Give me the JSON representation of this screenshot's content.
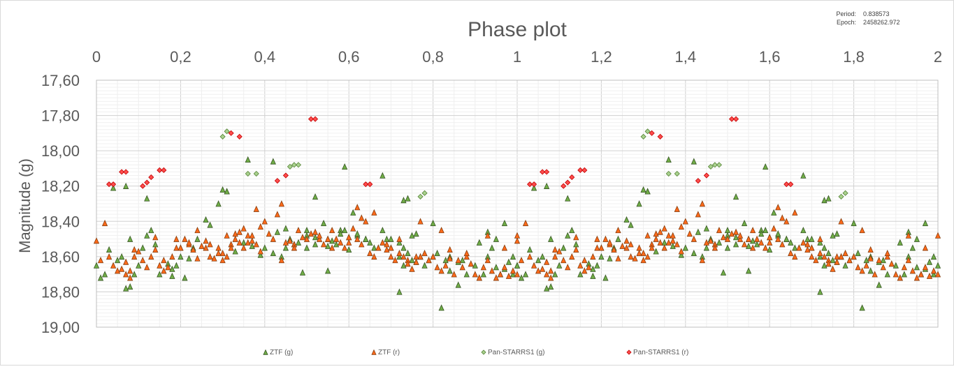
{
  "chart_data": {
    "type": "scatter",
    "title": "Phase plot",
    "xlabel": "",
    "ylabel": "Magnitude (g)",
    "xlim": [
      0,
      2
    ],
    "ylim": [
      17.6,
      19.0
    ],
    "y_inverted": true,
    "x_axis_position": "top",
    "x_ticks": [
      "0",
      "0,2",
      "0,4",
      "0,6",
      "0,8",
      "1",
      "1,2",
      "1,4",
      "1,6",
      "1,8",
      "2"
    ],
    "y_ticks": [
      "17,60",
      "17,80",
      "18,00",
      "18,20",
      "18,40",
      "18,60",
      "18,80",
      "19,00"
    ],
    "grid": true,
    "legend_position": "bottom",
    "info": {
      "period_label": "Period:",
      "period_value": "0.838573",
      "epoch_label": "Epoch:",
      "epoch_value": "2458262.972"
    },
    "series": [
      {
        "name": "ZTF (g)",
        "marker": "triangle",
        "color": "#70AD47",
        "edge": "#375623",
        "points": [
          [
            0.0,
            18.65
          ],
          [
            0.01,
            18.72
          ],
          [
            0.02,
            18.7
          ],
          [
            0.03,
            18.56
          ],
          [
            0.05,
            18.62
          ],
          [
            0.06,
            18.6
          ],
          [
            0.07,
            18.78
          ],
          [
            0.08,
            18.77
          ],
          [
            0.08,
            18.5
          ],
          [
            0.09,
            18.7
          ],
          [
            0.1,
            18.65
          ],
          [
            0.11,
            18.55
          ],
          [
            0.12,
            18.48
          ],
          [
            0.13,
            18.45
          ],
          [
            0.14,
            18.53
          ],
          [
            0.15,
            18.7
          ],
          [
            0.17,
            18.64
          ],
          [
            0.18,
            18.67
          ],
          [
            0.19,
            18.65
          ],
          [
            0.2,
            18.6
          ],
          [
            0.21,
            18.72
          ],
          [
            0.23,
            18.55
          ],
          [
            0.24,
            18.5
          ],
          [
            0.26,
            18.39
          ],
          [
            0.27,
            18.42
          ],
          [
            0.29,
            18.3
          ],
          [
            0.3,
            18.22
          ],
          [
            0.31,
            18.23
          ],
          [
            0.04,
            18.21
          ],
          [
            0.07,
            18.2
          ],
          [
            0.12,
            18.27
          ],
          [
            0.18,
            18.71
          ],
          [
            0.22,
            18.61
          ],
          [
            0.33,
            18.57
          ],
          [
            0.35,
            18.52
          ],
          [
            0.37,
            18.54
          ],
          [
            0.39,
            18.59
          ],
          [
            0.4,
            18.55
          ],
          [
            0.42,
            18.58
          ],
          [
            0.44,
            18.6
          ],
          [
            0.45,
            18.55
          ],
          [
            0.47,
            18.53
          ],
          [
            0.49,
            18.69
          ],
          [
            0.5,
            18.55
          ],
          [
            0.52,
            18.53
          ],
          [
            0.54,
            18.41
          ],
          [
            0.56,
            18.51
          ],
          [
            0.58,
            18.45
          ],
          [
            0.6,
            18.56
          ],
          [
            0.62,
            18.48
          ],
          [
            0.64,
            18.5
          ],
          [
            0.31,
            18.23
          ],
          [
            0.36,
            18.05
          ],
          [
            0.42,
            18.06
          ],
          [
            0.45,
            18.44
          ],
          [
            0.5,
            18.45
          ],
          [
            0.55,
            18.54
          ],
          [
            0.59,
            18.45
          ],
          [
            0.43,
            18.46
          ],
          [
            0.46,
            18.5
          ],
          [
            0.48,
            18.52
          ],
          [
            0.5,
            18.48
          ],
          [
            0.52,
            18.49
          ],
          [
            0.55,
            18.5
          ],
          [
            0.57,
            18.53
          ],
          [
            0.58,
            18.47
          ],
          [
            0.6,
            18.49
          ],
          [
            0.62,
            18.47
          ],
          [
            0.64,
            18.5
          ],
          [
            0.66,
            18.55
          ],
          [
            0.68,
            18.45
          ],
          [
            0.7,
            18.5
          ],
          [
            0.72,
            18.52
          ],
          [
            0.73,
            18.55
          ],
          [
            0.75,
            18.48
          ],
          [
            0.76,
            18.47
          ],
          [
            0.52,
            18.26
          ],
          [
            0.55,
            18.68
          ],
          [
            0.59,
            18.09
          ],
          [
            0.61,
            18.35
          ],
          [
            0.68,
            18.14
          ],
          [
            0.73,
            18.28
          ],
          [
            0.74,
            18.27
          ],
          [
            0.72,
            18.8
          ],
          [
            0.8,
            18.41
          ],
          [
            0.82,
            18.89
          ],
          [
            0.84,
            18.6
          ],
          [
            0.86,
            18.63
          ],
          [
            0.65,
            18.52
          ],
          [
            0.67,
            18.55
          ],
          [
            0.69,
            18.5
          ],
          [
            0.7,
            18.55
          ],
          [
            0.72,
            18.6
          ],
          [
            0.73,
            18.65
          ],
          [
            0.74,
            18.58
          ],
          [
            0.75,
            18.62
          ],
          [
            0.76,
            18.63
          ],
          [
            0.77,
            18.6
          ],
          [
            0.78,
            18.65
          ],
          [
            0.79,
            18.62
          ],
          [
            0.8,
            18.6
          ],
          [
            0.81,
            18.58
          ],
          [
            0.83,
            18.62
          ],
          [
            0.84,
            18.68
          ],
          [
            0.86,
            18.76
          ],
          [
            0.87,
            18.62
          ],
          [
            0.88,
            18.7
          ],
          [
            0.9,
            18.65
          ],
          [
            0.91,
            18.72
          ],
          [
            0.92,
            18.7
          ],
          [
            0.93,
            18.6
          ],
          [
            0.94,
            18.55
          ],
          [
            0.95,
            18.66
          ],
          [
            0.96,
            18.7
          ],
          [
            0.97,
            18.67
          ],
          [
            0.98,
            18.63
          ],
          [
            0.99,
            18.7
          ],
          [
            1.0,
            18.65
          ],
          [
            0.91,
            18.52
          ],
          [
            0.93,
            18.46
          ],
          [
            0.95,
            18.5
          ],
          [
            0.97,
            18.41
          ],
          [
            0.99,
            18.6
          ]
        ]
      },
      {
        "name": "ZTF (r)",
        "marker": "triangle",
        "color": "#FF6A1A",
        "edge": "#843C0C",
        "points": [
          [
            0.0,
            18.51
          ],
          [
            0.01,
            18.62
          ],
          [
            0.02,
            18.41
          ],
          [
            0.03,
            18.6
          ],
          [
            0.04,
            18.65
          ],
          [
            0.05,
            18.68
          ],
          [
            0.06,
            18.67
          ],
          [
            0.07,
            18.63
          ],
          [
            0.08,
            18.68
          ],
          [
            0.09,
            18.6
          ],
          [
            0.1,
            18.57
          ],
          [
            0.11,
            18.62
          ],
          [
            0.12,
            18.66
          ],
          [
            0.13,
            18.6
          ],
          [
            0.14,
            18.56
          ],
          [
            0.15,
            18.65
          ],
          [
            0.16,
            18.68
          ],
          [
            0.17,
            18.66
          ],
          [
            0.18,
            18.6
          ],
          [
            0.19,
            18.55
          ],
          [
            0.2,
            18.55
          ],
          [
            0.21,
            18.5
          ],
          [
            0.22,
            18.53
          ],
          [
            0.23,
            18.56
          ],
          [
            0.24,
            18.61
          ],
          [
            0.25,
            18.54
          ],
          [
            0.26,
            18.55
          ],
          [
            0.27,
            18.6
          ],
          [
            0.28,
            18.61
          ],
          [
            0.29,
            18.55
          ],
          [
            0.3,
            18.58
          ],
          [
            0.31,
            18.6
          ],
          [
            0.32,
            18.53
          ],
          [
            0.33,
            18.5
          ],
          [
            0.34,
            18.52
          ],
          [
            0.35,
            18.55
          ],
          [
            0.36,
            18.48
          ],
          [
            0.37,
            18.51
          ],
          [
            0.38,
            18.53
          ],
          [
            0.39,
            18.57
          ],
          [
            0.07,
            18.7
          ],
          [
            0.08,
            18.72
          ],
          [
            0.09,
            18.56
          ],
          [
            0.14,
            18.49
          ],
          [
            0.16,
            18.62
          ],
          [
            0.19,
            18.5
          ],
          [
            0.2,
            18.55
          ],
          [
            0.22,
            18.52
          ],
          [
            0.24,
            18.45
          ],
          [
            0.26,
            18.51
          ],
          [
            0.27,
            18.53
          ],
          [
            0.29,
            18.58
          ],
          [
            0.3,
            18.62
          ],
          [
            0.31,
            18.48
          ],
          [
            0.32,
            18.55
          ],
          [
            0.33,
            18.47
          ],
          [
            0.35,
            18.44
          ],
          [
            0.36,
            18.52
          ],
          [
            0.38,
            18.33
          ],
          [
            0.4,
            18.4
          ],
          [
            0.41,
            18.47
          ],
          [
            0.42,
            18.5
          ],
          [
            0.43,
            18.36
          ],
          [
            0.44,
            18.62
          ],
          [
            0.45,
            18.52
          ],
          [
            0.46,
            18.51
          ],
          [
            0.47,
            18.53
          ],
          [
            0.48,
            18.45
          ],
          [
            0.49,
            18.49
          ],
          [
            0.5,
            18.5
          ],
          [
            0.51,
            18.47
          ],
          [
            0.52,
            18.46
          ],
          [
            0.53,
            18.5
          ],
          [
            0.54,
            18.53
          ],
          [
            0.55,
            18.5
          ],
          [
            0.56,
            18.45
          ],
          [
            0.57,
            18.5
          ],
          [
            0.58,
            18.52
          ],
          [
            0.59,
            18.55
          ],
          [
            0.6,
            18.49
          ],
          [
            0.61,
            18.44
          ],
          [
            0.62,
            18.5
          ],
          [
            0.63,
            18.53
          ],
          [
            0.64,
            18.4
          ],
          [
            0.65,
            18.58
          ],
          [
            0.66,
            18.6
          ],
          [
            0.67,
            18.55
          ],
          [
            0.68,
            18.52
          ],
          [
            0.69,
            18.56
          ],
          [
            0.7,
            18.6
          ],
          [
            0.34,
            18.46
          ],
          [
            0.37,
            18.48
          ],
          [
            0.39,
            18.43
          ],
          [
            0.44,
            18.3
          ],
          [
            0.47,
            18.55
          ],
          [
            0.53,
            18.48
          ],
          [
            0.56,
            18.55
          ],
          [
            0.6,
            18.52
          ],
          [
            0.62,
            18.32
          ],
          [
            0.63,
            18.38
          ],
          [
            0.66,
            18.35
          ],
          [
            0.69,
            18.53
          ],
          [
            0.72,
            18.5
          ],
          [
            0.74,
            18.62
          ],
          [
            0.76,
            18.6
          ],
          [
            0.77,
            18.4
          ],
          [
            0.7,
            18.55
          ],
          [
            0.71,
            18.62
          ],
          [
            0.72,
            18.58
          ],
          [
            0.73,
            18.6
          ],
          [
            0.74,
            18.64
          ],
          [
            0.75,
            18.67
          ],
          [
            0.76,
            18.63
          ],
          [
            0.77,
            18.6
          ],
          [
            0.78,
            18.58
          ],
          [
            0.79,
            18.62
          ],
          [
            0.8,
            18.6
          ],
          [
            0.81,
            18.66
          ],
          [
            0.82,
            18.68
          ],
          [
            0.83,
            18.65
          ],
          [
            0.84,
            18.61
          ],
          [
            0.85,
            18.7
          ],
          [
            0.86,
            18.62
          ],
          [
            0.87,
            18.66
          ],
          [
            0.88,
            18.6
          ],
          [
            0.89,
            18.64
          ],
          [
            0.9,
            18.7
          ],
          [
            0.91,
            18.72
          ],
          [
            0.92,
            18.66
          ],
          [
            0.93,
            18.62
          ],
          [
            0.94,
            18.68
          ],
          [
            0.95,
            18.72
          ],
          [
            0.96,
            18.7
          ],
          [
            0.97,
            18.66
          ],
          [
            0.98,
            18.71
          ],
          [
            0.99,
            18.68
          ],
          [
            1.0,
            18.7
          ],
          [
            0.82,
            18.45
          ],
          [
            0.84,
            18.56
          ],
          [
            0.88,
            18.58
          ],
          [
            0.93,
            18.48
          ],
          [
            0.97,
            18.55
          ],
          [
            1.0,
            18.48
          ]
        ]
      },
      {
        "name": "Pan-STARRS1 (g)",
        "marker": "diamond",
        "color": "#A9D18E",
        "edge": "#548235",
        "points": [
          [
            0.3,
            17.92
          ],
          [
            0.31,
            17.89
          ],
          [
            0.36,
            18.13
          ],
          [
            0.38,
            18.13
          ],
          [
            0.46,
            18.09
          ],
          [
            0.47,
            18.08
          ],
          [
            0.48,
            18.08
          ],
          [
            0.77,
            18.26
          ],
          [
            0.78,
            18.24
          ]
        ]
      },
      {
        "name": "Pan-STARRS1 (r)",
        "marker": "diamond",
        "color": "#FF4D4D",
        "edge": "#C00000",
        "points": [
          [
            0.03,
            18.19
          ],
          [
            0.04,
            18.19
          ],
          [
            0.06,
            18.12
          ],
          [
            0.07,
            18.12
          ],
          [
            0.11,
            18.2
          ],
          [
            0.12,
            18.18
          ],
          [
            0.13,
            18.15
          ],
          [
            0.15,
            18.11
          ],
          [
            0.16,
            18.11
          ],
          [
            0.32,
            17.9
          ],
          [
            0.34,
            17.92
          ],
          [
            0.43,
            18.17
          ],
          [
            0.45,
            18.14
          ],
          [
            0.51,
            17.82
          ],
          [
            0.52,
            17.82
          ],
          [
            0.64,
            18.19
          ],
          [
            0.65,
            18.19
          ]
        ]
      }
    ]
  }
}
